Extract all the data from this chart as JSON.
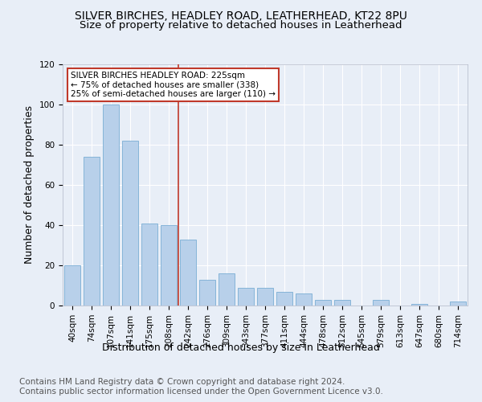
{
  "title1": "SILVER BIRCHES, HEADLEY ROAD, LEATHERHEAD, KT22 8PU",
  "title2": "Size of property relative to detached houses in Leatherhead",
  "xlabel": "Distribution of detached houses by size in Leatherhead",
  "ylabel": "Number of detached properties",
  "categories": [
    "40sqm",
    "74sqm",
    "107sqm",
    "141sqm",
    "175sqm",
    "208sqm",
    "242sqm",
    "276sqm",
    "309sqm",
    "343sqm",
    "377sqm",
    "411sqm",
    "444sqm",
    "478sqm",
    "512sqm",
    "545sqm",
    "579sqm",
    "613sqm",
    "647sqm",
    "680sqm",
    "714sqm"
  ],
  "values": [
    20,
    74,
    100,
    82,
    41,
    40,
    33,
    13,
    16,
    9,
    9,
    7,
    6,
    3,
    3,
    0,
    3,
    0,
    1,
    0,
    2
  ],
  "bar_color": "#b8d0ea",
  "bar_edge_color": "#7aadd4",
  "vline_x": 5.5,
  "vline_color": "#c0392b",
  "annotation_text": "SILVER BIRCHES HEADLEY ROAD: 225sqm\n← 75% of detached houses are smaller (338)\n25% of semi-detached houses are larger (110) →",
  "annotation_box_color": "#c0392b",
  "ylim": [
    0,
    120
  ],
  "yticks": [
    0,
    20,
    40,
    60,
    80,
    100,
    120
  ],
  "footer_text": "Contains HM Land Registry data © Crown copyright and database right 2024.\nContains public sector information licensed under the Open Government Licence v3.0.",
  "bg_color": "#e8eef7",
  "plot_bg_color": "#e8eef7",
  "title_fontsize": 10,
  "axis_label_fontsize": 9,
  "tick_fontsize": 7.5,
  "footer_fontsize": 7.5
}
